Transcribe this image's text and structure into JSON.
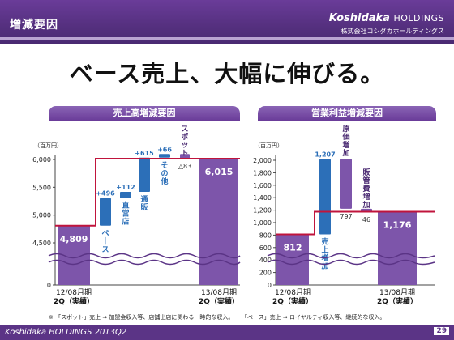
{
  "header": {
    "section_title": "増減要因",
    "brand_name": "Koshidaka",
    "brand_suffix": "HOLDINGS",
    "brand_sub": "株式会社コシダカホールディングス"
  },
  "headline": "ベース売上、大幅に伸びる。",
  "colors": {
    "purple": "#7d55aa",
    "blue": "#2c6fb8",
    "red": "#c0143c",
    "dark": "#4a2a72"
  },
  "chart_data": [
    {
      "type": "bar",
      "title": "売上高増減要因",
      "unit_label": "（百万円）",
      "ylim": [
        0,
        6300
      ],
      "broken_axis": true,
      "ytick_labels": [
        "0",
        "4,500",
        "5,000",
        "5,500",
        "6,000"
      ],
      "yticks": [
        0,
        4500,
        5000,
        5500,
        6000
      ],
      "bars": [
        {
          "kind": "total",
          "value": 4809,
          "label": "4,809",
          "category": [
            "12/08月期",
            "2Q（実績）"
          ]
        },
        {
          "kind": "increase",
          "delta": 496,
          "label": "+496",
          "name": "ベース"
        },
        {
          "kind": "increase",
          "delta": 112,
          "label": "+112",
          "name": "直営店"
        },
        {
          "kind": "increase",
          "delta": 615,
          "label": "+615",
          "name": "通販"
        },
        {
          "kind": "increase",
          "delta": 66,
          "label": "+66",
          "name": "その他"
        },
        {
          "kind": "decrease",
          "delta": -83,
          "label": "△83",
          "name": "スポット"
        },
        {
          "kind": "total",
          "value": 6015,
          "label": "6,015",
          "category": [
            "13/08月期",
            "2Q（実績）"
          ]
        }
      ]
    },
    {
      "type": "bar",
      "title": "営業利益増減要因",
      "unit_label": "（百万円）",
      "ylim": [
        0,
        2150
      ],
      "ytick_labels": [
        "0",
        "200",
        "400",
        "600",
        "800",
        "1,000",
        "1,200",
        "1,400",
        "1,600",
        "1,800",
        "2,000"
      ],
      "yticks": [
        0,
        200,
        400,
        600,
        800,
        1000,
        1200,
        1400,
        1600,
        1800,
        2000
      ],
      "bars": [
        {
          "kind": "total",
          "value": 812,
          "label": "812",
          "category": [
            "12/08月期",
            "2Q（実績）"
          ]
        },
        {
          "kind": "increase",
          "delta": 1207,
          "label": "1,207",
          "name": "売上増加"
        },
        {
          "kind": "decrease",
          "delta": -797,
          "label": "797",
          "name": "原価増加"
        },
        {
          "kind": "decrease",
          "delta": -46,
          "label": "46",
          "name": "販管費増加"
        },
        {
          "kind": "total",
          "value": 1176,
          "label": "1,176",
          "category": [
            "13/08月期",
            "2Q（実績）"
          ]
        }
      ]
    }
  ],
  "notes": {
    "left": "※ 「スポット」売上 ⇒ 加盟金収入等、店舗出店に関わる一時的な収入。",
    "right": "「ベース」売上 ⇒ ロイヤルティ収入等、継続的な収入。"
  },
  "footer": {
    "text": "Koshidaka HOLDINGS 2013Q2",
    "page": "29"
  }
}
